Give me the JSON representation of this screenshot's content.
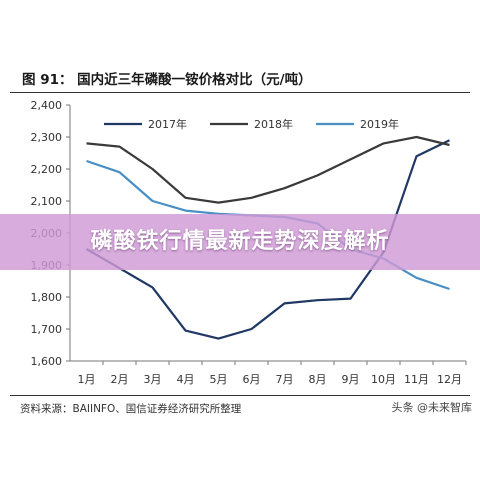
{
  "figure": {
    "title": "图 91：  国内近三年磷酸一铵价格对比（元/吨）",
    "source": "资料来源：BAIINFO、国信证券经济研究所整理",
    "watermark": "头条 @未来智库"
  },
  "banner": {
    "text": "磷酸铁行情最新走势深度解析",
    "color": "#cf9ad6"
  },
  "chart_data": {
    "type": "line",
    "title": "国内近三年磷酸一铵价格对比（元/吨）",
    "xlabel": "",
    "ylabel": "",
    "categories": [
      "1月",
      "2月",
      "3月",
      "4月",
      "5月",
      "6月",
      "7月",
      "8月",
      "9月",
      "10月",
      "11月",
      "12月"
    ],
    "yticks": [
      "1,600",
      "1,700",
      "1,800",
      "1,900",
      "2,000",
      "2,100",
      "2,200",
      "2,300",
      "2,400"
    ],
    "ylim": [
      1600,
      2400
    ],
    "grid": false,
    "legend_position": "top",
    "series": [
      {
        "name": "2017年",
        "color": "#1f3864",
        "values": [
          1950,
          1890,
          1830,
          1695,
          1670,
          1700,
          1780,
          1790,
          1795,
          1940,
          2240,
          2290
        ]
      },
      {
        "name": "2018年",
        "color": "#3a3a3a",
        "values": [
          2280,
          2270,
          2200,
          2110,
          2095,
          2110,
          2140,
          2180,
          2230,
          2280,
          2300,
          2275
        ]
      },
      {
        "name": "2019年",
        "color": "#4a8fc4",
        "values": [
          2225,
          2190,
          2100,
          2070,
          2060,
          2055,
          2050,
          2030,
          1950,
          1920,
          1860,
          1825
        ]
      }
    ]
  }
}
